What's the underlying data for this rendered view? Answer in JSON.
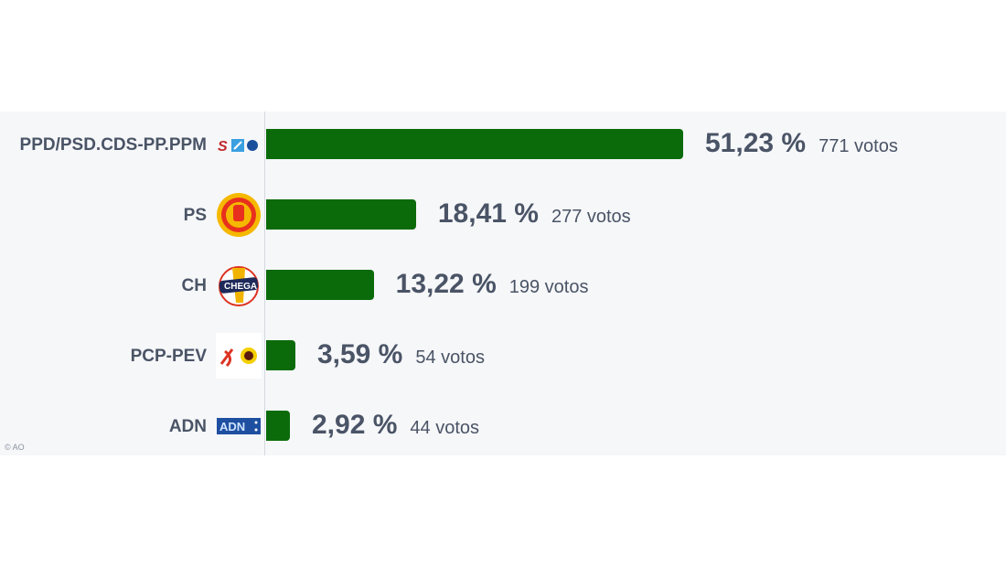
{
  "chart_data": {
    "type": "bar",
    "orientation": "horizontal",
    "categories": [
      "PPD/PSD.CDS-PP.PPM",
      "PS",
      "CH",
      "PCP-PEV",
      "ADN"
    ],
    "values": [
      51.23,
      18.41,
      13.22,
      3.59,
      2.92
    ],
    "percent_labels": [
      "51,23 %",
      "18,41 %",
      "13,22 %",
      "3,59 %",
      "2,92 %"
    ],
    "vote_labels": [
      "771 votos",
      "277 votos",
      "199 votos",
      "54 votos",
      "44 votos"
    ],
    "votes": [
      771,
      277,
      199,
      54,
      44
    ],
    "bar_color": "#0b6b0b",
    "logos": [
      "ad-coalition-logo",
      "ps-fist-logo",
      "chega-logo",
      "cdu-hammer-sickle-sunflower-logo",
      "adn-logo"
    ]
  },
  "credit": "© AO"
}
